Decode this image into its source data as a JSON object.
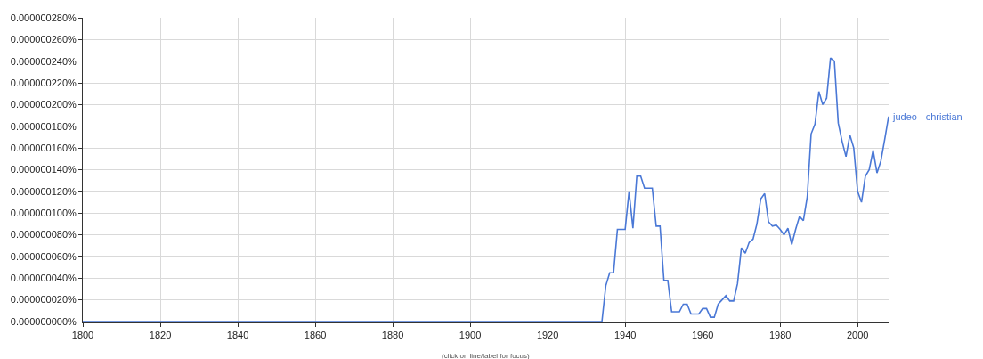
{
  "chart_data": {
    "type": "line",
    "x": [
      1800,
      1934,
      1935,
      1936,
      1937,
      1938,
      1939,
      1940,
      1941,
      1942,
      1943,
      1944,
      1945,
      1946,
      1947,
      1948,
      1949,
      1950,
      1951,
      1952,
      1953,
      1954,
      1955,
      1956,
      1957,
      1958,
      1959,
      1960,
      1961,
      1962,
      1963,
      1964,
      1965,
      1966,
      1967,
      1968,
      1969,
      1970,
      1971,
      1972,
      1973,
      1974,
      1975,
      1976,
      1977,
      1978,
      1979,
      1980,
      1981,
      1982,
      1983,
      1984,
      1985,
      1986,
      1987,
      1988,
      1989,
      1990,
      1991,
      1992,
      1993,
      1994,
      1995,
      1996,
      1997,
      1998,
      1999,
      2000,
      2001,
      2002,
      2003,
      2004,
      2005,
      2006,
      2007,
      2008
    ],
    "series": [
      {
        "name": "judeo - christian",
        "color": "#4a78d6",
        "values": [
          0,
          0,
          3.3e-08,
          4.5e-08,
          4.5e-08,
          8.5e-08,
          8.5e-08,
          8.5e-08,
          1.2e-07,
          8.6e-08,
          1.34e-07,
          1.34e-07,
          1.23e-07,
          1.23e-07,
          1.23e-07,
          8.8e-08,
          8.8e-08,
          3.8e-08,
          3.8e-08,
          9e-09,
          9e-09,
          9e-09,
          1.6e-08,
          1.6e-08,
          7e-09,
          7e-09,
          7e-09,
          1.2e-08,
          1.2e-08,
          4e-09,
          4e-09,
          1.6e-08,
          2e-08,
          2.4e-08,
          1.9e-08,
          1.9e-08,
          3.5e-08,
          6.8e-08,
          6.3e-08,
          7.3e-08,
          7.6e-08,
          9e-08,
          1.13e-07,
          1.18e-07,
          9.2e-08,
          8.8e-08,
          8.9e-08,
          8.5e-08,
          8e-08,
          8.6e-08,
          7.1e-08,
          8.5e-08,
          9.7e-08,
          9.3e-08,
          1.15e-07,
          1.73e-07,
          1.82e-07,
          2.12e-07,
          2e-07,
          2.06e-07,
          2.43e-07,
          2.4e-07,
          1.83e-07,
          1.66e-07,
          1.52e-07,
          1.72e-07,
          1.6e-07,
          1.2e-07,
          1.1e-07,
          1.34e-07,
          1.4e-07,
          1.58e-07,
          1.37e-07,
          1.48e-07,
          1.68e-07,
          1.89e-07
        ]
      }
    ],
    "xlim": [
      1800,
      2008
    ],
    "xticks": [
      1800,
      1820,
      1840,
      1860,
      1880,
      1900,
      1920,
      1940,
      1960,
      1980,
      2000
    ],
    "ylim": [
      0,
      2.8e-07
    ],
    "yticks": [
      {
        "value": 0,
        "label": "0.000000000%"
      },
      {
        "value": 2e-08,
        "label": "0.000000020%"
      },
      {
        "value": 4e-08,
        "label": "0.000000040%"
      },
      {
        "value": 6e-08,
        "label": "0.000000060%"
      },
      {
        "value": 8e-08,
        "label": "0.000000080%"
      },
      {
        "value": 1e-07,
        "label": "0.000000100%"
      },
      {
        "value": 1.2e-07,
        "label": "0.000000120%"
      },
      {
        "value": 1.4e-07,
        "label": "0.000000140%"
      },
      {
        "value": 1.6e-07,
        "label": "0.000000160%"
      },
      {
        "value": 1.8e-07,
        "label": "0.000000180%"
      },
      {
        "value": 2e-07,
        "label": "0.000000200%"
      },
      {
        "value": 2.2e-07,
        "label": "0.000000220%"
      },
      {
        "value": 2.4e-07,
        "label": "0.000000240%"
      },
      {
        "value": 2.6e-07,
        "label": "0.000000260%"
      },
      {
        "value": 2.8e-07,
        "label": "0.000000280%"
      }
    ],
    "grid": true,
    "annotations": [
      "(click on line/label for focus)"
    ]
  }
}
